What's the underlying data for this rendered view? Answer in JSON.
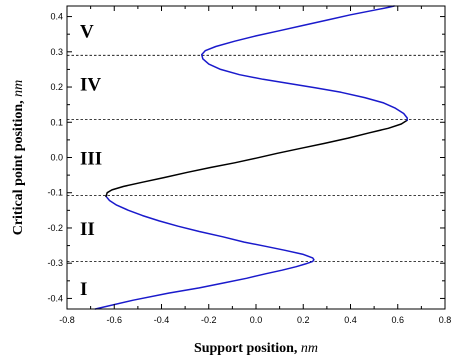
{
  "chart_data": {
    "type": "line",
    "xlabel": "Support position",
    "xlabel_unit": "nm",
    "ylabel": "Critical point position",
    "ylabel_unit": "nm",
    "xlim": [
      -0.8,
      0.8
    ],
    "ylim": [
      -0.43,
      0.43
    ],
    "xticks": [
      -0.8,
      -0.6,
      -0.4,
      -0.2,
      0.0,
      0.2,
      0.4,
      0.6,
      0.8
    ],
    "xtick_labels": [
      "-0.8",
      "-0.6",
      "-0.4",
      "-0.2",
      "0.0",
      "0.2",
      "0.4",
      "0.6",
      "0.8"
    ],
    "yticks": [
      -0.4,
      -0.3,
      -0.2,
      -0.1,
      0.0,
      0.1,
      0.2,
      0.3,
      0.4
    ],
    "ytick_labels": [
      "-0.4",
      "-0.3",
      "-0.2",
      "-0.1",
      "0.0",
      "0.1",
      "0.2",
      "0.3",
      "0.4"
    ],
    "grid": false,
    "reference_lines_y": [
      -0.295,
      -0.108,
      0.108,
      0.29
    ],
    "region_labels": [
      {
        "text": "V",
        "y": 0.36
      },
      {
        "text": "IV",
        "y": 0.21
      },
      {
        "text": "III",
        "y": 0.0
      },
      {
        "text": "II",
        "y": -0.2
      },
      {
        "text": "I",
        "y": -0.37
      }
    ],
    "series": [
      {
        "color": "#1a1acc",
        "points": [
          [
            -0.68,
            -0.43
          ],
          [
            -0.52,
            -0.405
          ],
          [
            -0.37,
            -0.385
          ],
          [
            -0.24,
            -0.37
          ],
          [
            -0.13,
            -0.355
          ],
          [
            -0.04,
            -0.343
          ],
          [
            0.04,
            -0.33
          ],
          [
            0.11,
            -0.32
          ],
          [
            0.17,
            -0.31
          ],
          [
            0.21,
            -0.302
          ],
          [
            0.24,
            -0.295
          ],
          [
            0.245,
            -0.29
          ],
          [
            0.24,
            -0.285
          ],
          [
            0.2,
            -0.275
          ],
          [
            0.12,
            -0.263
          ],
          [
            0.04,
            -0.252
          ],
          [
            -0.05,
            -0.24
          ],
          [
            -0.14,
            -0.225
          ],
          [
            -0.24,
            -0.21
          ],
          [
            -0.33,
            -0.195
          ],
          [
            -0.41,
            -0.18
          ],
          [
            -0.48,
            -0.165
          ],
          [
            -0.54,
            -0.15
          ],
          [
            -0.59,
            -0.135
          ],
          [
            -0.62,
            -0.122
          ],
          [
            -0.635,
            -0.11
          ]
        ]
      },
      {
        "color": "#000000",
        "points": [
          [
            -0.635,
            -0.11
          ],
          [
            -0.63,
            -0.1
          ],
          [
            -0.61,
            -0.092
          ],
          [
            -0.56,
            -0.082
          ],
          [
            -0.48,
            -0.07
          ],
          [
            -0.39,
            -0.057
          ],
          [
            -0.29,
            -0.042
          ],
          [
            -0.19,
            -0.028
          ],
          [
            -0.09,
            -0.015
          ],
          [
            0.0,
            -0.002
          ],
          [
            0.09,
            0.012
          ],
          [
            0.19,
            0.026
          ],
          [
            0.29,
            0.04
          ],
          [
            0.39,
            0.055
          ],
          [
            0.48,
            0.07
          ],
          [
            0.56,
            0.083
          ],
          [
            0.615,
            0.095
          ],
          [
            0.64,
            0.106
          ]
        ]
      },
      {
        "color": "#1a1acc",
        "points": [
          [
            0.64,
            0.106
          ],
          [
            0.64,
            0.112
          ],
          [
            0.625,
            0.125
          ],
          [
            0.59,
            0.14
          ],
          [
            0.54,
            0.155
          ],
          [
            0.46,
            0.17
          ],
          [
            0.36,
            0.185
          ],
          [
            0.25,
            0.198
          ],
          [
            0.14,
            0.21
          ],
          [
            0.03,
            0.222
          ],
          [
            -0.07,
            0.235
          ],
          [
            -0.15,
            0.25
          ],
          [
            -0.2,
            0.265
          ],
          [
            -0.225,
            0.28
          ],
          [
            -0.23,
            0.292
          ],
          [
            -0.215,
            0.303
          ],
          [
            -0.17,
            0.315
          ],
          [
            -0.09,
            0.33
          ],
          [
            0.0,
            0.345
          ],
          [
            0.1,
            0.36
          ],
          [
            0.2,
            0.375
          ],
          [
            0.3,
            0.39
          ],
          [
            0.4,
            0.405
          ],
          [
            0.5,
            0.418
          ],
          [
            0.56,
            0.426
          ],
          [
            0.585,
            0.43
          ]
        ]
      }
    ]
  }
}
